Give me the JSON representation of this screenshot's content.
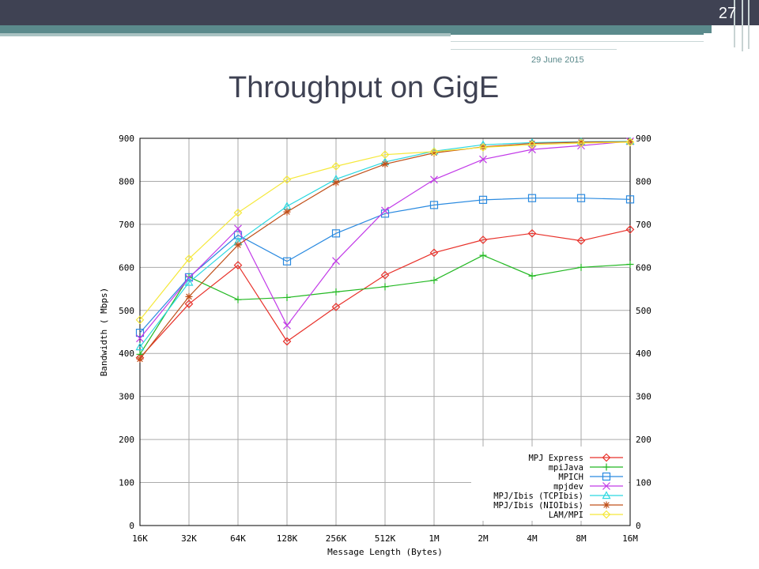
{
  "slide": {
    "number": "27",
    "date": "29 June 2015",
    "title": "Throughput on GigE"
  },
  "chart_data": {
    "type": "line",
    "xlabel": "Message Length (Bytes)",
    "ylabel": "Bandwidth ( Mbps)",
    "ylim": [
      0,
      900
    ],
    "yticks": [
      "0",
      "100",
      "200",
      "300",
      "400",
      "500",
      "600",
      "700",
      "800",
      "900"
    ],
    "categories": [
      "16K",
      "32K",
      "64K",
      "128K",
      "256K",
      "512K",
      "1M",
      "2M",
      "4M",
      "8M",
      "16M"
    ],
    "grid": true,
    "legend_position": "bottom-right",
    "series": [
      {
        "name": "MPJ Express",
        "color": "#e8312a",
        "marker": "diamond",
        "values": [
          390,
          515,
          605,
          428,
          508,
          582,
          634,
          664,
          679,
          662,
          688
        ]
      },
      {
        "name": "mpiJava",
        "color": "#22b822",
        "marker": "plus",
        "values": [
          398,
          578,
          525,
          530,
          543,
          555,
          570,
          628,
          580,
          600,
          607
        ]
      },
      {
        "name": "MPICH",
        "color": "#2a8ae0",
        "marker": "square",
        "values": [
          448,
          577,
          675,
          614,
          679,
          725,
          745,
          757,
          761,
          761,
          758
        ]
      },
      {
        "name": "mpjdev",
        "color": "#c23ae8",
        "marker": "cross",
        "values": [
          435,
          575,
          690,
          465,
          615,
          732,
          804,
          851,
          874,
          883,
          893
        ]
      },
      {
        "name": "MPJ/Ibis (TCPIbis)",
        "color": "#2ad8e0",
        "marker": "triangle",
        "values": [
          415,
          565,
          660,
          742,
          805,
          845,
          870,
          885,
          890,
          892,
          893
        ]
      },
      {
        "name": "MPJ/Ibis (NIOIbis)",
        "color": "#c0501a",
        "marker": "star",
        "values": [
          387,
          532,
          652,
          729,
          797,
          840,
          866,
          880,
          888,
          891,
          892
        ]
      },
      {
        "name": "LAM/MPI",
        "color": "#f5e83a",
        "marker": "diamond",
        "values": [
          478,
          620,
          727,
          804,
          835,
          862,
          869,
          879,
          885,
          889,
          891
        ]
      }
    ]
  }
}
